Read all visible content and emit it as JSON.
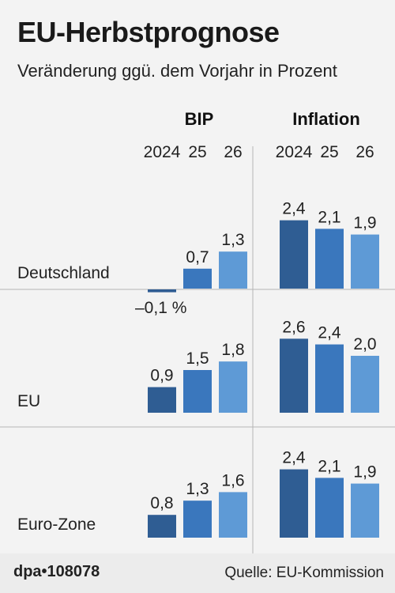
{
  "header": {
    "title": "EU-Herbstprognose",
    "subtitle": "Veränderung ggü. dem Vorjahr in Prozent"
  },
  "footer": {
    "credit": "dpa•108078",
    "source": "Quelle: EU-Kommission"
  },
  "colors": {
    "year_2024": "#2f5d93",
    "year_25": "#3a77bd",
    "year_26": "#5e9ad6",
    "grid_line": "#b5b5b5",
    "background": "#f3f3f3"
  },
  "chart_data": {
    "type": "bar",
    "title": "EU-Herbstprognose",
    "subtitle": "Veränderung ggü. dem Vorjahr in Prozent",
    "unit": "%",
    "panels": [
      "BIP",
      "Inflation"
    ],
    "years": [
      "2024",
      "25",
      "26"
    ],
    "regions": [
      {
        "name": "Deutschland",
        "BIP": [
          -0.1,
          0.7,
          1.3
        ],
        "BIP_labels": [
          "–0,1 %",
          "0,7",
          "1,3"
        ],
        "Inflation": [
          2.4,
          2.1,
          1.9
        ],
        "Inflation_labels": [
          "2,4",
          "2,1",
          "1,9"
        ]
      },
      {
        "name": "EU",
        "BIP": [
          0.9,
          1.5,
          1.8
        ],
        "BIP_labels": [
          "0,9",
          "1,5",
          "1,8"
        ],
        "Inflation": [
          2.6,
          2.4,
          2.0
        ],
        "Inflation_labels": [
          "2,6",
          "2,4",
          "2,0"
        ]
      },
      {
        "name": "Euro-Zone",
        "BIP": [
          0.8,
          1.3,
          1.6
        ],
        "BIP_labels": [
          "0,8",
          "1,3",
          "1,6"
        ],
        "Inflation": [
          2.4,
          2.1,
          1.9
        ],
        "Inflation_labels": [
          "2,4",
          "2,1",
          "1,9"
        ]
      }
    ]
  }
}
